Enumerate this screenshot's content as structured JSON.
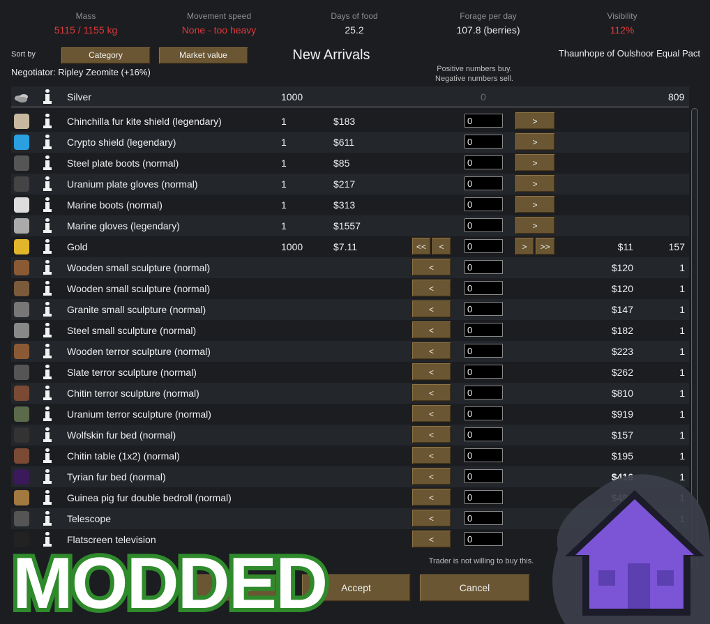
{
  "stats": [
    {
      "label": "Mass",
      "value": "5115 / 1155 kg",
      "status": "red"
    },
    {
      "label": "Movement speed",
      "value": "None - too heavy",
      "status": "red"
    },
    {
      "label": "Days of food",
      "value": "25.2",
      "status": "normal"
    },
    {
      "label": "Forage per day",
      "value": "107.8 (berries)",
      "status": "normal"
    },
    {
      "label": "Visibility",
      "value": "112%",
      "status": "red"
    }
  ],
  "sort": {
    "label": "Sort by",
    "by_category": "Category",
    "by_market_value": "Market value"
  },
  "title": "New Arrivals",
  "faction": "Thaunhope of Oulshoor Equal Pact",
  "negotiator": "Negotiator: Ripley Zeomite (+16%)",
  "hint": [
    "Positive numbers buy.",
    "Negative numbers sell."
  ],
  "silver": {
    "name": "Silver",
    "colony_count": "1000",
    "value": "0",
    "trader_count": "809"
  },
  "rows": [
    {
      "name": "Chinchilla fur kite shield (legendary)",
      "colony_count": "1",
      "colony_price": "$183",
      "value": "0",
      "buy": ">"
    },
    {
      "name": "Crypto shield (legendary)",
      "colony_count": "1",
      "colony_price": "$611",
      "value": "0",
      "buy": ">"
    },
    {
      "name": "Steel plate boots (normal)",
      "colony_count": "1",
      "colony_price": "$85",
      "value": "0",
      "buy": ">"
    },
    {
      "name": "Uranium plate gloves (normal)",
      "colony_count": "1",
      "colony_price": "$217",
      "value": "0",
      "buy": ">"
    },
    {
      "name": "Marine boots (normal)",
      "colony_count": "1",
      "colony_price": "$313",
      "value": "0",
      "buy": ">"
    },
    {
      "name": "Marine gloves (legendary)",
      "colony_count": "1",
      "colony_price": "$1557",
      "value": "0",
      "buy": ">"
    },
    {
      "name": "Gold",
      "colony_count": "1000",
      "colony_price": "$7.11",
      "value": "0",
      "sell_all": "<<",
      "sell": "<",
      "buy": ">",
      "buy_all": ">>",
      "trader_price": "$11",
      "trader_count": "157"
    },
    {
      "name": "Wooden small sculpture (normal)",
      "value": "0",
      "sell": "<",
      "trader_price": "$120",
      "trader_count": "1"
    },
    {
      "name": "Wooden small sculpture (normal)",
      "value": "0",
      "sell": "<",
      "trader_price": "$120",
      "trader_count": "1"
    },
    {
      "name": "Granite small sculpture (normal)",
      "value": "0",
      "sell": "<",
      "trader_price": "$147",
      "trader_count": "1"
    },
    {
      "name": "Steel small sculpture (normal)",
      "value": "0",
      "sell": "<",
      "trader_price": "$182",
      "trader_count": "1"
    },
    {
      "name": "Wooden terror sculpture (normal)",
      "value": "0",
      "sell": "<",
      "trader_price": "$223",
      "trader_count": "1"
    },
    {
      "name": "Slate terror sculpture (normal)",
      "value": "0",
      "sell": "<",
      "trader_price": "$262",
      "trader_count": "1"
    },
    {
      "name": "Chitin terror sculpture (normal)",
      "value": "0",
      "sell": "<",
      "trader_price": "$810",
      "trader_count": "1"
    },
    {
      "name": "Uranium terror sculpture (normal)",
      "value": "0",
      "sell": "<",
      "trader_price": "$919",
      "trader_count": "1"
    },
    {
      "name": "Wolfskin fur bed (normal)",
      "value": "0",
      "sell": "<",
      "trader_price": "$157",
      "trader_count": "1"
    },
    {
      "name": "Chitin table (1x2) (normal)",
      "value": "0",
      "sell": "<",
      "trader_price": "$195",
      "trader_count": "1"
    },
    {
      "name": "Tyrian fur bed (normal)",
      "value": "0",
      "sell": "<",
      "trader_price": "$416",
      "trader_count": "1"
    },
    {
      "name": "Guinea pig fur double bedroll (normal)",
      "value": "0",
      "sell": "<",
      "trader_price": "$491",
      "trader_count": "1"
    },
    {
      "name": "Telescope",
      "value": "0",
      "sell": "<",
      "trader_count": "1"
    },
    {
      "name": "Flatscreen television",
      "value": "0",
      "sell": "<"
    }
  ],
  "notice": "Trader is not willing to buy this.",
  "buttons": {
    "reset": "Reset",
    "accept": "Accept",
    "cancel": "Cancel"
  },
  "overlay": {
    "text": "MODDED"
  }
}
